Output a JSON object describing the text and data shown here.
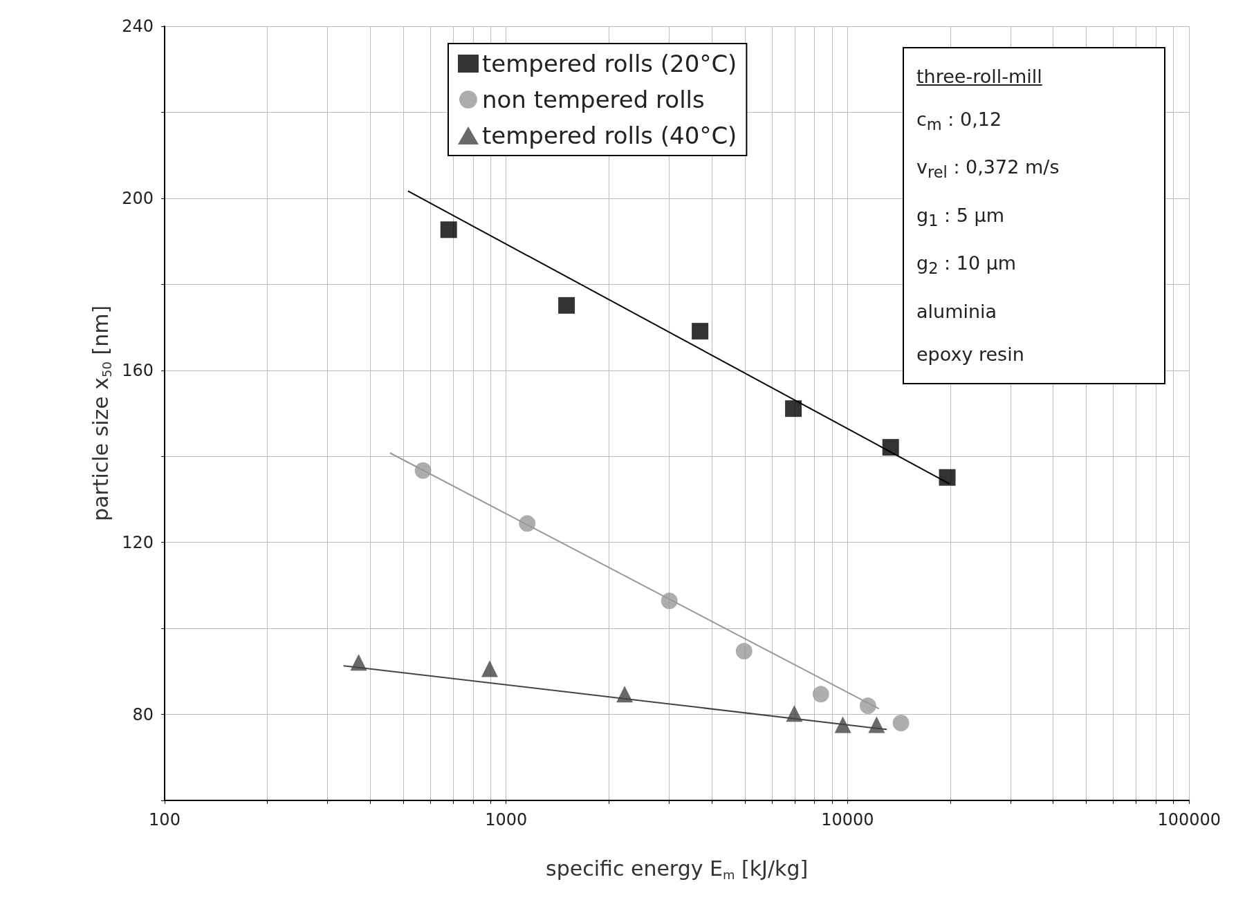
{
  "chart_data": {
    "type": "scatter",
    "xlabel": "specific energy E$_{m}$ [kJ/kg]",
    "ylabel": "particle size x$_{50}$ [nm]",
    "log": "x",
    "grid": true,
    "legend": "top",
    "xlim": [
      100,
      100000
    ],
    "ylim": [
      60,
      240
    ],
    "xticks": [
      100,
      {
        "value": 200,
        "label": null
      },
      {
        "value": 300,
        "label": null
      },
      {
        "value": 400,
        "label": null
      },
      {
        "value": 500,
        "label": null
      },
      {
        "value": 600,
        "label": null
      },
      {
        "value": 700,
        "label": null
      },
      {
        "value": 800,
        "label": null
      },
      {
        "value": 900,
        "label": null
      },
      1000,
      {
        "value": 2000,
        "label": null
      },
      {
        "value": 3000,
        "label": null
      },
      {
        "value": 4000,
        "label": null
      },
      {
        "value": 5000,
        "label": null
      },
      {
        "value": 6000,
        "label": null
      },
      {
        "value": 7000,
        "label": null
      },
      {
        "value": 8000,
        "label": null
      },
      {
        "value": 9000,
        "label": null
      },
      10000,
      {
        "value": 20000,
        "label": null
      },
      {
        "value": 30000,
        "label": null
      },
      {
        "value": 40000,
        "label": null
      },
      {
        "value": 50000,
        "label": null
      },
      {
        "value": 60000,
        "label": null
      },
      {
        "value": 70000,
        "label": null
      },
      {
        "value": 80000,
        "label": null
      },
      {
        "value": 90000,
        "label": null
      },
      100000
    ],
    "yticks": [
      {
        "value": 60,
        "label": null
      },
      80,
      {
        "value": 100,
        "label": null
      },
      120,
      {
        "value": 140,
        "label": null
      },
      160,
      {
        "value": 180,
        "label": null
      },
      200,
      {
        "value": 220,
        "label": null
      },
      240
    ],
    "annotations": [
      "three-roll-mill",
      "c$_{m}$ : 0,12",
      "v$_{rel}$ : 0,372 m/s",
      "g$_{1}$ : 5 µm",
      "g$_{2}$ : 10 µm",
      "aluminia",
      "epoxy resin"
    ],
    "series": [
      {
        "name": "tempered rolls (20°C)",
        "marker": "square",
        "color": "#000000",
        "x": [
          679,
          1503,
          3698,
          6938,
          13370,
          19580
        ],
        "values": [
          192.7,
          175.1,
          169.1,
          151.1,
          142.1,
          135.1
        ]
      },
      {
        "name": "non tempered rolls",
        "marker": "circle",
        "color": "#999999",
        "x": [
          571,
          1153,
          3006,
          4975,
          8350,
          11470,
          14330
        ],
        "values": [
          136.7,
          124.4,
          106.4,
          94.7,
          84.7,
          82.0,
          78.0
        ]
      },
      {
        "name": "tempered rolls (40°C)",
        "marker": "triangle",
        "color": "#444444",
        "x": [
          370,
          895,
          2224,
          6980,
          9687,
          12160
        ],
        "values": [
          92.1,
          90.6,
          84.7,
          80.2,
          77.6,
          77.6
        ]
      },
      {
        "type": "line",
        "color": "#000000",
        "x": [
          516,
          19900
        ],
        "values": [
          201.7,
          133.6
        ]
      },
      {
        "type": "line",
        "color": "#999999",
        "x": [
          457,
          12360
        ],
        "values": [
          140.8,
          81.3
        ]
      },
      {
        "type": "line",
        "color": "#444444",
        "x": [
          334,
          13030
        ],
        "values": [
          91.3,
          76.5
        ]
      }
    ]
  }
}
